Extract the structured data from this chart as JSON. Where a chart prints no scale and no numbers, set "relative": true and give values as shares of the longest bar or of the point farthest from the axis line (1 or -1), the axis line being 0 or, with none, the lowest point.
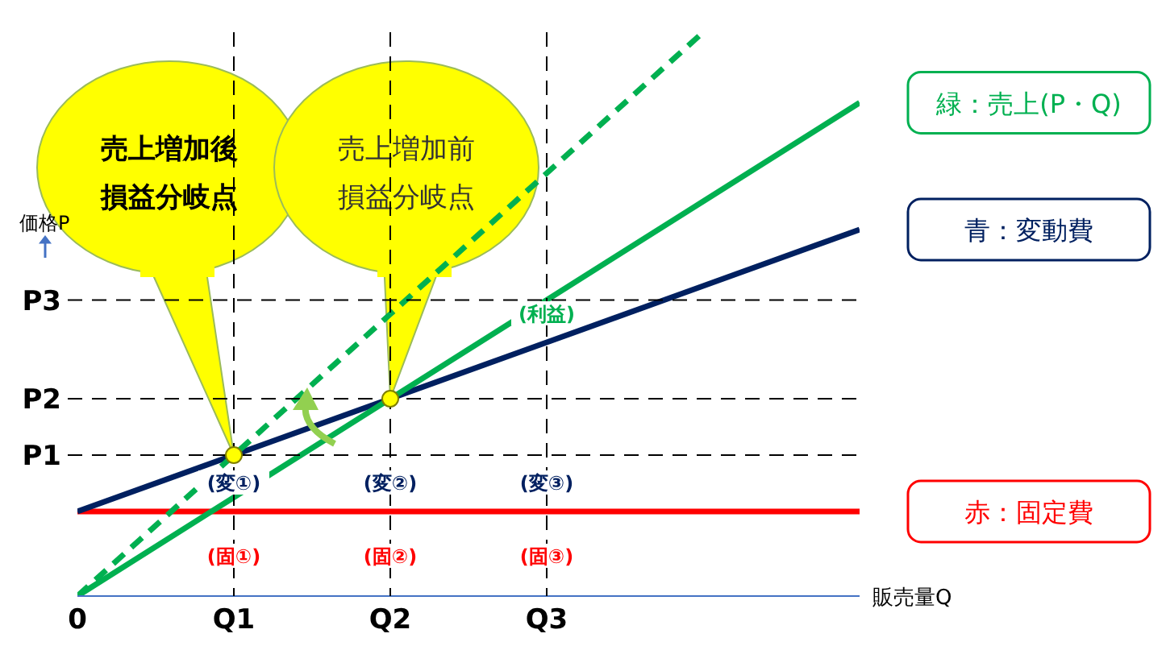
{
  "chart_data": {
    "type": "line",
    "relative": true,
    "categories": [
      "0",
      "Q1",
      "Q2",
      "Q3",
      null,
      null
    ],
    "xlabel": "販売量Q",
    "ylabel": "価格P",
    "series": [
      {
        "name": "赤：固定費",
        "color": "#ff0000",
        "values": [
          0.15,
          0.15,
          0.15,
          0.15,
          0.15,
          0.15
        ]
      },
      {
        "name": "青：変動費",
        "color": "#002060",
        "values": [
          0.15,
          0.25,
          0.35,
          0.45,
          0.55,
          0.65
        ]
      },
      {
        "name": "緑：売上(P・Q)",
        "color": "#00b050",
        "values": [
          0,
          0.175,
          0.35,
          0.525,
          0.7,
          0.875
        ]
      },
      {
        "color": "#00b050",
        "line_style": "dashed",
        "values": [
          0,
          0.25,
          0.5,
          0.75,
          1,
          null
        ]
      },
      {
        "type": "scatter",
        "marker": "circle",
        "color": "#ffff00",
        "x": [
          "Q1",
          "Q2"
        ],
        "values": [
          0.25,
          0.35
        ]
      }
    ],
    "ref_lines": [
      {
        "axis": "y",
        "value": 0.25,
        "label": "P1",
        "line_style": "dashed"
      },
      {
        "axis": "y",
        "value": 0.35,
        "label": "P2",
        "line_style": "dashed"
      },
      {
        "axis": "y",
        "value": 0.525,
        "label": "P3",
        "line_style": "dashed"
      },
      {
        "axis": "x",
        "value": "Q1",
        "line_style": "dashed"
      },
      {
        "axis": "x",
        "value": "Q2",
        "line_style": "dashed"
      },
      {
        "axis": "x",
        "value": "Q3",
        "line_style": "dashed"
      }
    ],
    "annotations": [
      "売上増加後損益分岐点",
      "売上増加前損益分岐点",
      {
        "text": "(変①)",
        "x": "Q1",
        "y": 0.2
      },
      {
        "text": "(変②)",
        "x": "Q2",
        "y": 0.2
      },
      {
        "text": "(変③)",
        "x": "Q3",
        "y": 0.2
      },
      {
        "text": "(固①)",
        "x": "Q1",
        "y": 0.07
      },
      {
        "text": "(固②)",
        "x": "Q2",
        "y": 0.07
      },
      {
        "text": "(固③)",
        "x": "Q3",
        "y": 0.07
      },
      {
        "text": "(利益)",
        "x": "Q3",
        "y": 0.5
      }
    ],
    "legend": "right",
    "marker": "none",
    "line_style": "solid"
  }
}
